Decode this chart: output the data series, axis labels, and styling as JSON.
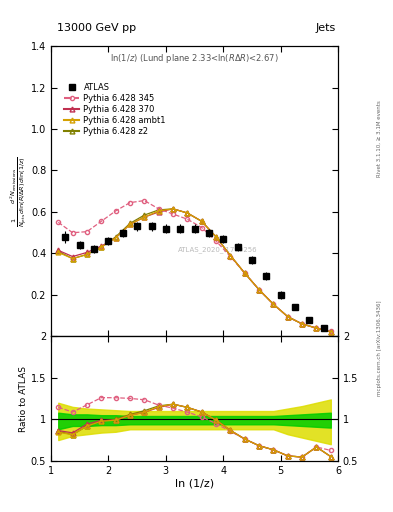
{
  "title_left": "13000 GeV pp",
  "title_right": "Jets",
  "plot_label": "ln(1/z) (Lund plane 2.33<ln(RΔ R)<2.67)",
  "watermark": "ATLAS_2020_I1790256",
  "right_label_top": "Rivet 3.1.10, ≥ 3.1M events",
  "right_label_bottom": "mcplots.cern.ch [arXiv:1306.3436]",
  "xlabel": "ln (1/z)",
  "ylabel_ratio": "Ratio to ATLAS",
  "xlim": [
    1.0,
    6.0
  ],
  "ylim_main": [
    0.0,
    1.4
  ],
  "ylim_ratio": [
    0.5,
    2.0
  ],
  "yticks_main": [
    0.2,
    0.4,
    0.6,
    0.8,
    1.0,
    1.2,
    1.4
  ],
  "yticks_ratio": [
    0.5,
    1.0,
    1.5,
    2.0
  ],
  "atlas_x": [
    1.25,
    1.5,
    1.75,
    2.0,
    2.25,
    2.5,
    2.75,
    3.0,
    3.25,
    3.5,
    3.75,
    4.0,
    4.25,
    4.5,
    4.75,
    5.0,
    5.25,
    5.5,
    5.75
  ],
  "atlas_y": [
    0.48,
    0.44,
    0.42,
    0.46,
    0.5,
    0.53,
    0.53,
    0.52,
    0.52,
    0.52,
    0.5,
    0.47,
    0.43,
    0.37,
    0.29,
    0.2,
    0.14,
    0.08,
    0.04
  ],
  "atlas_yerr_lo": [
    0.03,
    0.02,
    0.02,
    0.02,
    0.02,
    0.02,
    0.02,
    0.02,
    0.02,
    0.02,
    0.02,
    0.02,
    0.02,
    0.02,
    0.02,
    0.02,
    0.01,
    0.01,
    0.01
  ],
  "atlas_yerr_hi": [
    0.03,
    0.02,
    0.02,
    0.02,
    0.02,
    0.02,
    0.02,
    0.02,
    0.02,
    0.02,
    0.02,
    0.02,
    0.02,
    0.02,
    0.02,
    0.02,
    0.01,
    0.01,
    0.01
  ],
  "py345_x": [
    1.125,
    1.375,
    1.625,
    1.875,
    2.125,
    2.375,
    2.625,
    2.875,
    3.125,
    3.375,
    3.625,
    3.875,
    4.125,
    4.375,
    4.625,
    4.875,
    5.125,
    5.375,
    5.625,
    5.875
  ],
  "py345_y": [
    0.55,
    0.5,
    0.505,
    0.555,
    0.605,
    0.645,
    0.655,
    0.615,
    0.59,
    0.565,
    0.525,
    0.46,
    0.385,
    0.305,
    0.225,
    0.155,
    0.095,
    0.06,
    0.04,
    0.025
  ],
  "py370_x": [
    1.125,
    1.375,
    1.625,
    1.875,
    2.125,
    2.375,
    2.625,
    2.875,
    3.125,
    3.375,
    3.625,
    3.875,
    4.125,
    4.375,
    4.625,
    4.875,
    5.125,
    5.375,
    5.625,
    5.875
  ],
  "py370_y": [
    0.415,
    0.385,
    0.405,
    0.435,
    0.475,
    0.54,
    0.575,
    0.6,
    0.615,
    0.595,
    0.555,
    0.48,
    0.39,
    0.305,
    0.225,
    0.155,
    0.095,
    0.06,
    0.04,
    0.022
  ],
  "pyambt1_x": [
    1.125,
    1.375,
    1.625,
    1.875,
    2.125,
    2.375,
    2.625,
    2.875,
    3.125,
    3.375,
    3.625,
    3.875,
    4.125,
    4.375,
    4.625,
    4.875,
    5.125,
    5.375,
    5.625,
    5.875
  ],
  "pyambt1_y": [
    0.405,
    0.375,
    0.395,
    0.43,
    0.475,
    0.54,
    0.575,
    0.605,
    0.615,
    0.595,
    0.555,
    0.48,
    0.39,
    0.305,
    0.225,
    0.155,
    0.095,
    0.06,
    0.04,
    0.022
  ],
  "pyz2_x": [
    1.125,
    1.375,
    1.625,
    1.875,
    2.125,
    2.375,
    2.625,
    2.875,
    3.125,
    3.375,
    3.625,
    3.875,
    4.125,
    4.375,
    4.625,
    4.875,
    5.125,
    5.375,
    5.625,
    5.875
  ],
  "pyz2_y": [
    0.41,
    0.375,
    0.395,
    0.43,
    0.48,
    0.545,
    0.585,
    0.61,
    0.615,
    0.595,
    0.555,
    0.48,
    0.39,
    0.305,
    0.225,
    0.155,
    0.095,
    0.06,
    0.04,
    0.022
  ],
  "band_x": [
    1.125,
    1.375,
    1.625,
    1.875,
    2.125,
    2.375,
    2.625,
    2.875,
    3.125,
    3.375,
    3.625,
    3.875,
    4.125,
    4.375,
    4.625,
    4.875,
    5.125,
    5.375,
    5.625,
    5.875
  ],
  "green_lo": [
    0.88,
    0.92,
    0.92,
    0.93,
    0.93,
    0.94,
    0.94,
    0.94,
    0.94,
    0.94,
    0.94,
    0.94,
    0.94,
    0.94,
    0.94,
    0.94,
    0.93,
    0.92,
    0.91,
    0.9
  ],
  "green_hi": [
    1.08,
    1.06,
    1.06,
    1.05,
    1.05,
    1.04,
    1.04,
    1.04,
    1.04,
    1.04,
    1.04,
    1.04,
    1.04,
    1.04,
    1.04,
    1.04,
    1.05,
    1.06,
    1.07,
    1.08
  ],
  "yellow_lo": [
    0.75,
    0.8,
    0.82,
    0.84,
    0.85,
    0.88,
    0.88,
    0.88,
    0.88,
    0.88,
    0.88,
    0.88,
    0.88,
    0.88,
    0.88,
    0.88,
    0.82,
    0.78,
    0.74,
    0.7
  ],
  "yellow_hi": [
    1.2,
    1.15,
    1.13,
    1.12,
    1.11,
    1.1,
    1.1,
    1.1,
    1.1,
    1.1,
    1.1,
    1.1,
    1.1,
    1.1,
    1.1,
    1.1,
    1.13,
    1.16,
    1.2,
    1.24
  ],
  "color_atlas": "#000000",
  "color_py345": "#e06080",
  "color_py370": "#c03050",
  "color_pyambt1": "#d4a000",
  "color_pyz2": "#808000",
  "color_green": "#00cc00",
  "color_yellow": "#dddd00",
  "bg_color": "#ffffff"
}
